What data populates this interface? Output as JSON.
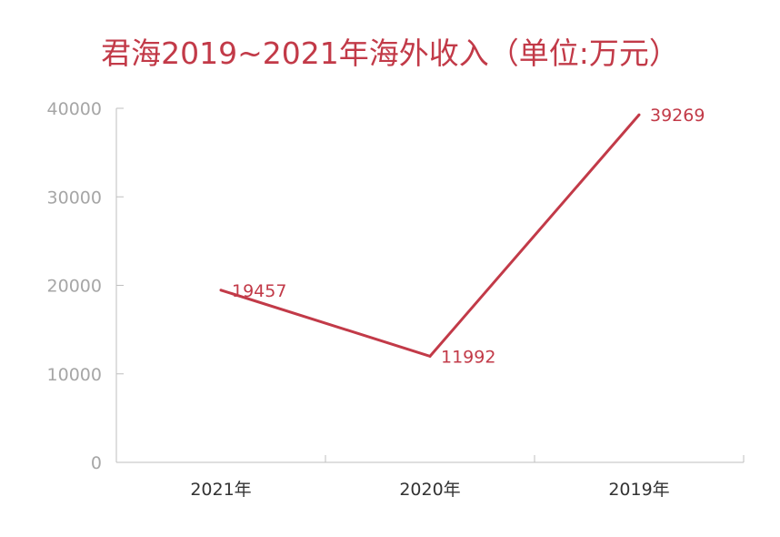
{
  "chart_data": {
    "type": "line",
    "title": "君海2019~2021年海外收入（单位:万元）",
    "categories": [
      "2021年",
      "2020年",
      "2019年"
    ],
    "series": [
      {
        "values": [
          19457,
          11992,
          39269
        ]
      }
    ],
    "data_labels": [
      "19457",
      "11992",
      "39269"
    ],
    "yticks": [
      0,
      10000,
      20000,
      30000,
      40000
    ],
    "ylim": [
      0,
      40000
    ],
    "grid": false,
    "legend": "none",
    "colors": {
      "line": "#c23a48",
      "title": "#c23a48",
      "axis": "#bfbfbf",
      "ytick": "#a6a6a6",
      "xtick": "#333333"
    }
  }
}
